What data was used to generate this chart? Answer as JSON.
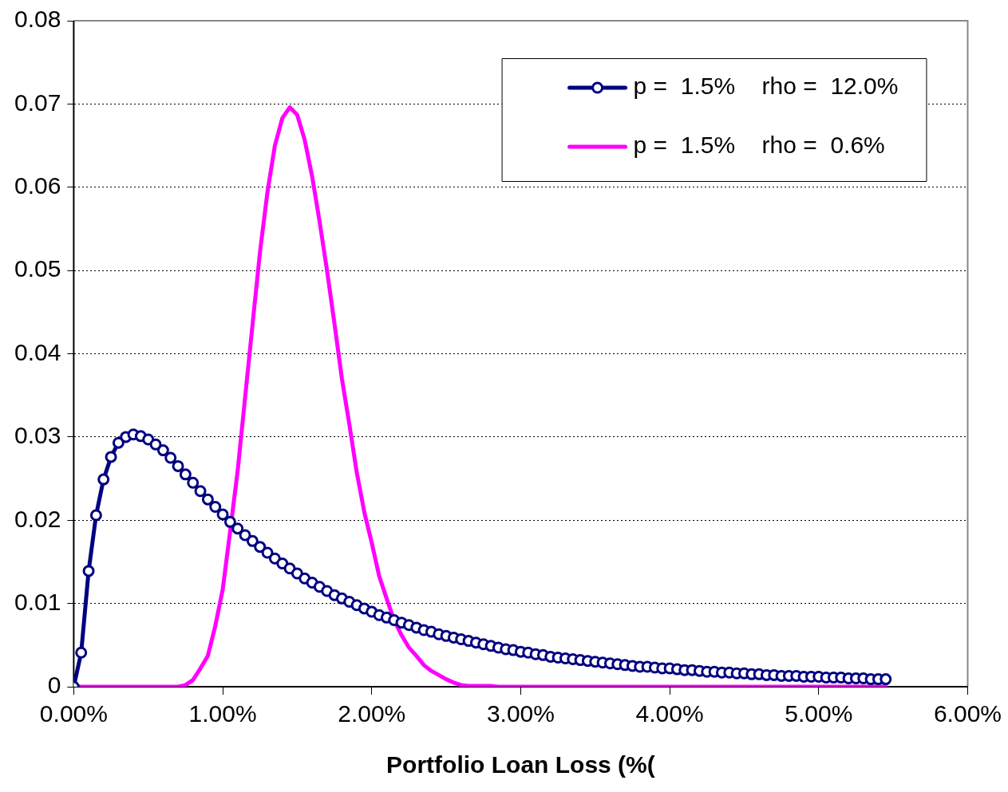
{
  "chart_data": {
    "type": "line",
    "xlabel": "Portfolio Loan Loss (%(",
    "xlim": [
      0,
      6
    ],
    "xticks": [
      {
        "value": 0,
        "label": "0.00%"
      },
      {
        "value": 1,
        "label": "1.00%"
      },
      {
        "value": 2,
        "label": "2.00%"
      },
      {
        "value": 3,
        "label": "3.00%"
      },
      {
        "value": 4,
        "label": "4.00%"
      },
      {
        "value": 5,
        "label": "5.00%"
      },
      {
        "value": 6,
        "label": "6.00%"
      }
    ],
    "ylim": [
      0,
      0.08
    ],
    "yticks": [
      0,
      0.01,
      0.02,
      0.03,
      0.04,
      0.05,
      0.06,
      0.07,
      0.08
    ],
    "grid": "y",
    "legend": "top right",
    "line_style": "solid",
    "series": [
      {
        "name": "p =  1.5%    rho =  12.0%",
        "color": "#000080",
        "marker": "circle",
        "x": [
          0,
          0.05,
          0.1,
          0.15,
          0.2,
          0.25,
          0.3,
          0.35,
          0.4,
          0.45,
          0.5,
          0.55,
          0.6,
          0.65,
          0.7,
          0.75,
          0.8,
          0.85,
          0.9,
          0.95,
          1,
          1.05,
          1.1,
          1.15,
          1.2,
          1.25,
          1.3,
          1.35,
          1.4,
          1.45,
          1.5,
          1.55,
          1.6,
          1.65,
          1.7,
          1.75,
          1.8,
          1.85,
          1.9,
          1.95,
          2,
          2.05,
          2.1,
          2.15,
          2.2,
          2.25,
          2.3,
          2.35,
          2.4,
          2.45,
          2.5,
          2.55,
          2.6,
          2.65,
          2.7,
          2.75,
          2.8,
          2.85,
          2.9,
          2.95,
          3,
          3.05,
          3.1,
          3.15,
          3.2,
          3.25,
          3.3,
          3.35,
          3.4,
          3.45,
          3.5,
          3.55,
          3.6,
          3.65,
          3.7,
          3.75,
          3.8,
          3.85,
          3.9,
          3.95,
          4,
          4.05,
          4.1,
          4.15,
          4.2,
          4.25,
          4.3,
          4.35,
          4.4,
          4.45,
          4.5,
          4.55,
          4.6,
          4.65,
          4.7,
          4.75,
          4.8,
          4.85,
          4.9,
          4.95,
          5,
          5.05,
          5.1,
          5.15,
          5.2,
          5.25,
          5.3,
          5.35,
          5.4,
          5.45
        ],
        "values": [
          0,
          0.0041,
          0.0139,
          0.0206,
          0.0249,
          0.0276,
          0.0293,
          0.03,
          0.0303,
          0.0301,
          0.0297,
          0.0291,
          0.0284,
          0.0275,
          0.0265,
          0.0255,
          0.0245,
          0.0235,
          0.0225,
          0.0216,
          0.0207,
          0.0198,
          0.019,
          0.0182,
          0.0175,
          0.0168,
          0.0161,
          0.0154,
          0.0148,
          0.0142,
          0.0136,
          0.013,
          0.0125,
          0.012,
          0.0115,
          0.011,
          0.0106,
          0.0102,
          0.0098,
          0.0094,
          0.009,
          0.0086,
          0.0083,
          0.008,
          0.0077,
          0.0074,
          0.0071,
          0.0068,
          0.0066,
          0.0063,
          0.0061,
          0.0059,
          0.0057,
          0.0055,
          0.0053,
          0.0051,
          0.0049,
          0.0047,
          0.0045,
          0.0044,
          0.0042,
          0.0041,
          0.0039,
          0.0038,
          0.0036,
          0.0035,
          0.0034,
          0.0033,
          0.0032,
          0.0031,
          0.003,
          0.0029,
          0.0028,
          0.0027,
          0.0026,
          0.0025,
          0.0024,
          0.0024,
          0.0023,
          0.0022,
          0.0022,
          0.0021,
          0.002,
          0.002,
          0.0019,
          0.0018,
          0.0018,
          0.0017,
          0.0017,
          0.0016,
          0.0016,
          0.0015,
          0.0015,
          0.0014,
          0.0014,
          0.0013,
          0.0013,
          0.0013,
          0.0012,
          0.0012,
          0.0012,
          0.0011,
          0.0011,
          0.0011,
          0.001,
          0.001,
          0.001,
          0.0009,
          0.0009,
          0.0009
        ]
      },
      {
        "name": "p =  1.5%    rho =  0.6%",
        "color": "#ff00ff",
        "marker": "none",
        "x": [
          0,
          0.7,
          0.75,
          0.8,
          0.85,
          0.9,
          0.95,
          1,
          1.05,
          1.1,
          1.15,
          1.2,
          1.25,
          1.3,
          1.35,
          1.4,
          1.45,
          1.5,
          1.55,
          1.6,
          1.65,
          1.7,
          1.75,
          1.8,
          1.85,
          1.9,
          1.95,
          2,
          2.05,
          2.1,
          2.15,
          2.2,
          2.25,
          2.3,
          2.35,
          2.4,
          2.45,
          2.5,
          2.55,
          2.6,
          2.65,
          2.8,
          2.85,
          5.45
        ],
        "values": [
          0,
          0,
          0.0002,
          0.0008,
          0.0022,
          0.0037,
          0.0073,
          0.0117,
          0.0187,
          0.0259,
          0.0347,
          0.0435,
          0.0522,
          0.0594,
          0.065,
          0.0683,
          0.0696,
          0.0687,
          0.0657,
          0.0613,
          0.0559,
          0.05,
          0.0436,
          0.037,
          0.0315,
          0.0257,
          0.021,
          0.0173,
          0.0133,
          0.0106,
          0.008,
          0.0062,
          0.0047,
          0.0037,
          0.0026,
          0.0019,
          0.0014,
          0.0009,
          0.0005,
          0.0002,
          0.0001,
          0.0001,
          0,
          0
        ]
      }
    ]
  }
}
